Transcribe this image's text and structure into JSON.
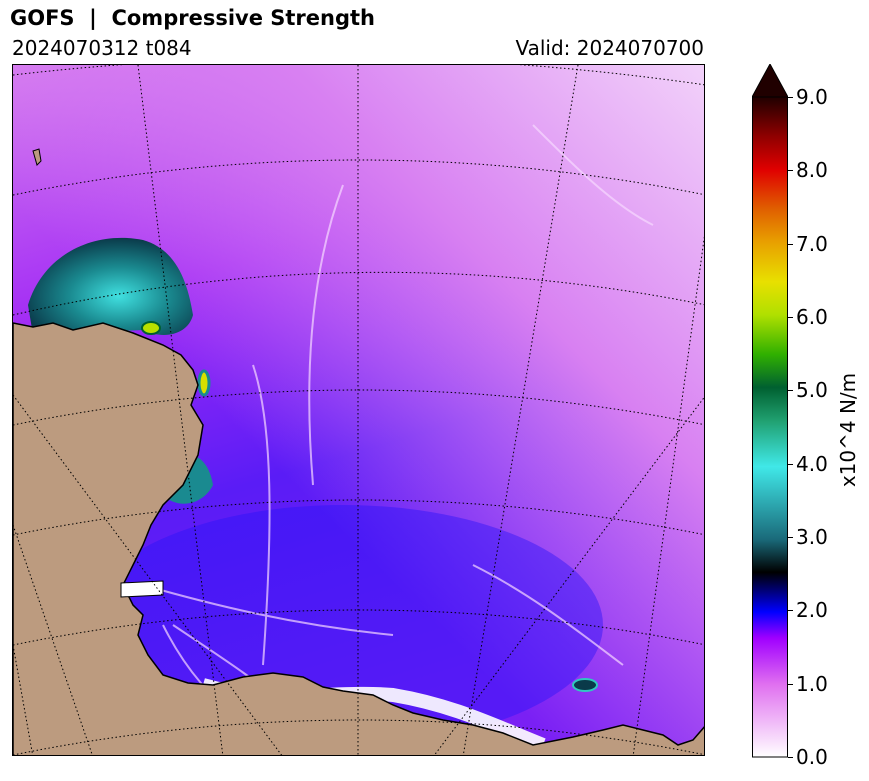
{
  "header": {
    "title": "GOFS  |  Compressive Strength",
    "init_label": "2024070312 t084",
    "valid_label": "Valid: 2024070700"
  },
  "map": {
    "land_color": "#bc9b7f",
    "gridline_style": "dotted"
  },
  "colorbar": {
    "unit": "x10^4 N/m",
    "min": 0.0,
    "max": 9.0,
    "extend": "max",
    "ticks": [
      "0.0",
      "1.0",
      "2.0",
      "3.0",
      "4.0",
      "5.0",
      "6.0",
      "7.0",
      "8.0",
      "9.0"
    ],
    "colors": {
      "0.0": "#ffffff",
      "1.0": "#e070f0",
      "1.6": "#a000ff",
      "2.0": "#0000ff",
      "2.5": "#000000",
      "3.0": "#1a6a7a",
      "4.0": "#40e8e8",
      "4.6": "#20a070",
      "5.0": "#006030",
      "5.5": "#30b000",
      "6.0": "#b0e000",
      "6.5": "#e8e000",
      "7.0": "#e8a000",
      "7.5": "#e06000",
      "8.0": "#e00000",
      "8.5": "#900000",
      "9.0": "#200000"
    }
  }
}
